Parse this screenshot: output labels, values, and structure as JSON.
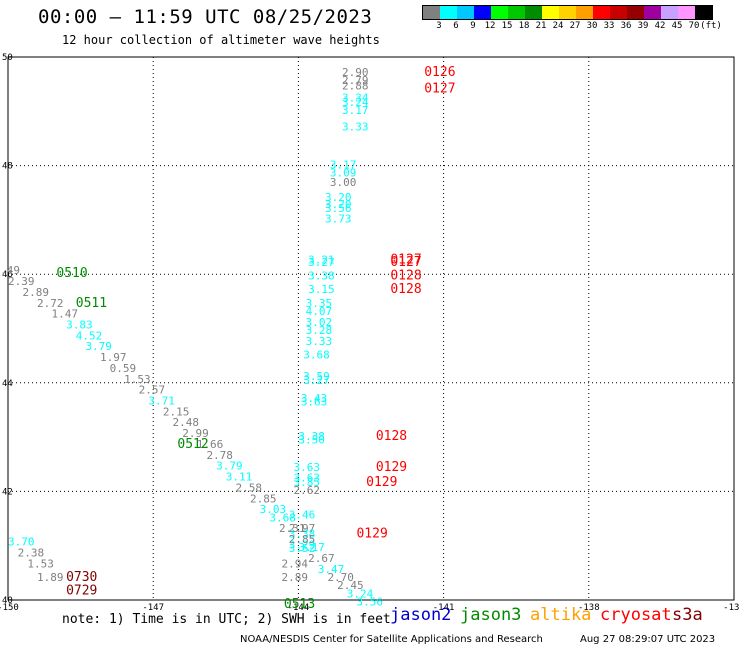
{
  "header": {
    "title": "00:00 — 11:59 UTC 08/25/2023",
    "subtitle": "12 hour collection of altimeter wave heights"
  },
  "color_scale": {
    "labels": [
      "3",
      "6",
      "9",
      "12",
      "15",
      "18",
      "21",
      "24",
      "27",
      "30",
      "33",
      "36",
      "39",
      "42",
      "45",
      "70",
      "(ft)"
    ],
    "colors": [
      "#808080",
      "#00ffff",
      "#00c8ff",
      "#0000ff",
      "#00ff00",
      "#00c800",
      "#008c00",
      "#ffff00",
      "#ffd200",
      "#ffa000",
      "#ff0000",
      "#c80000",
      "#960000",
      "#a000a0",
      "#c8a0ff",
      "#ff96ff",
      "#000000"
    ]
  },
  "note": "note: 1) Time is in UTC; 2) SWH is in feet",
  "satellites": [
    {
      "name": "jason2",
      "color": "#0000cc"
    },
    {
      "name": "jason3",
      "color": "#008c00"
    },
    {
      "name": "altika",
      "color": "#ffa000"
    },
    {
      "name": "cryosat",
      "color": "#ff0000"
    },
    {
      "name": "s3a",
      "color": "#800000"
    }
  ],
  "footer": {
    "left": "NOAA/NESDIS Center for Satellite Applications and Research",
    "right": "Aug 27 08:29:07 UTC 2023"
  },
  "chart_data": {
    "type": "scatter",
    "x_ticks": [
      "-150",
      "-147",
      "-144",
      "-141",
      "-138",
      "-135"
    ],
    "y_ticks": [
      "40",
      "42",
      "44",
      "46",
      "48",
      "50"
    ],
    "xlim": [
      -150,
      -135
    ],
    "ylim": [
      40,
      50
    ],
    "grid": true,
    "points": [
      {
        "lon": -143.1,
        "lat": 49.65,
        "label": "2.90",
        "color": "#808080"
      },
      {
        "lon": -143.1,
        "lat": 49.5,
        "label": "2.79",
        "color": "#808080"
      },
      {
        "lon": -143.1,
        "lat": 49.4,
        "label": "2.88",
        "color": "#808080"
      },
      {
        "lon": -143.1,
        "lat": 49.18,
        "label": "3.34",
        "color": "#00ffff"
      },
      {
        "lon": -143.1,
        "lat": 49.1,
        "label": "3.24",
        "color": "#00ffff"
      },
      {
        "lon": -143.1,
        "lat": 48.95,
        "label": "3.17",
        "color": "#00ffff"
      },
      {
        "lon": -143.1,
        "lat": 48.65,
        "label": "3.33",
        "color": "#00ffff"
      },
      {
        "lon": -143.35,
        "lat": 47.95,
        "label": "3.17",
        "color": "#00ffff"
      },
      {
        "lon": -143.35,
        "lat": 47.8,
        "label": "3.09",
        "color": "#00ffff"
      },
      {
        "lon": -143.35,
        "lat": 47.62,
        "label": "3.00",
        "color": "#808080"
      },
      {
        "lon": -143.45,
        "lat": 47.35,
        "label": "3.20",
        "color": "#00ffff"
      },
      {
        "lon": -143.45,
        "lat": 47.22,
        "label": "3.20",
        "color": "#00ffff"
      },
      {
        "lon": -143.45,
        "lat": 47.15,
        "label": "3.56",
        "color": "#00ffff"
      },
      {
        "lon": -143.45,
        "lat": 46.95,
        "label": "3.73",
        "color": "#00ffff"
      },
      {
        "lon": -143.8,
        "lat": 46.2,
        "label": "3.21",
        "color": "#00ffff"
      },
      {
        "lon": -143.8,
        "lat": 46.15,
        "label": "3.27",
        "color": "#00ffff"
      },
      {
        "lon": -143.8,
        "lat": 45.9,
        "label": "3.38",
        "color": "#00ffff"
      },
      {
        "lon": -143.8,
        "lat": 45.65,
        "label": "3.15",
        "color": "#00ffff"
      },
      {
        "lon": -143.85,
        "lat": 45.4,
        "label": "3.35",
        "color": "#00ffff"
      },
      {
        "lon": -143.85,
        "lat": 45.25,
        "label": "4.07",
        "color": "#00ffff"
      },
      {
        "lon": -143.85,
        "lat": 45.05,
        "label": "3.02",
        "color": "#00ffff"
      },
      {
        "lon": -143.85,
        "lat": 44.9,
        "label": "3.28",
        "color": "#00ffff"
      },
      {
        "lon": -143.85,
        "lat": 44.7,
        "label": "3.33",
        "color": "#00ffff"
      },
      {
        "lon": -143.9,
        "lat": 44.45,
        "label": "3.68",
        "color": "#00ffff"
      },
      {
        "lon": -143.9,
        "lat": 44.05,
        "label": "3.59",
        "color": "#00ffff"
      },
      {
        "lon": -143.9,
        "lat": 43.98,
        "label": "3.27",
        "color": "#00ffff"
      },
      {
        "lon": -143.95,
        "lat": 43.65,
        "label": "3.43",
        "color": "#00ffff"
      },
      {
        "lon": -143.95,
        "lat": 43.58,
        "label": "3.63",
        "color": "#00ffff"
      },
      {
        "lon": -144.0,
        "lat": 42.95,
        "label": "3.38",
        "color": "#00ffff"
      },
      {
        "lon": -144.0,
        "lat": 42.88,
        "label": "3.50",
        "color": "#00ffff"
      },
      {
        "lon": -144.1,
        "lat": 42.38,
        "label": "3.63",
        "color": "#00ffff"
      },
      {
        "lon": -144.1,
        "lat": 42.18,
        "label": "3.63",
        "color": "#00ffff"
      },
      {
        "lon": -144.1,
        "lat": 42.1,
        "label": "3.85",
        "color": "#00ffff"
      },
      {
        "lon": -144.1,
        "lat": 41.95,
        "label": "2.62",
        "color": "#808080"
      },
      {
        "lon": -144.2,
        "lat": 41.5,
        "label": "3.46",
        "color": "#00ffff"
      },
      {
        "lon": -144.2,
        "lat": 41.25,
        "label": "2.97",
        "color": "#808080"
      },
      {
        "lon": -144.2,
        "lat": 41.15,
        "label": "3.38",
        "color": "#00ffff"
      },
      {
        "lon": -144.2,
        "lat": 40.95,
        "label": "3.29",
        "color": "#00ffff"
      },
      {
        "lon": -144.2,
        "lat": 40.88,
        "label": "3.52",
        "color": "#00ffff"
      },
      {
        "lon": -144.35,
        "lat": 40.6,
        "label": "2.94",
        "color": "#808080"
      },
      {
        "lon": -144.35,
        "lat": 40.35,
        "label": "2.89",
        "color": "#808080"
      },
      {
        "lon": -150.3,
        "lat": 46.0,
        "label": "2.49",
        "color": "#808080"
      },
      {
        "lon": -150.0,
        "lat": 45.8,
        "label": "2.39",
        "color": "#808080"
      },
      {
        "lon": -149.7,
        "lat": 45.6,
        "label": "2.89",
        "color": "#808080"
      },
      {
        "lon": -149.4,
        "lat": 45.4,
        "label": "2.72",
        "color": "#808080"
      },
      {
        "lon": -149.1,
        "lat": 45.2,
        "label": "1.47",
        "color": "#808080"
      },
      {
        "lon": -148.8,
        "lat": 45.0,
        "label": "3.83",
        "color": "#00ffff"
      },
      {
        "lon": -148.6,
        "lat": 44.8,
        "label": "4.52",
        "color": "#00ffff"
      },
      {
        "lon": -148.4,
        "lat": 44.6,
        "label": "3.79",
        "color": "#00ffff"
      },
      {
        "lon": -148.1,
        "lat": 44.4,
        "label": "1.97",
        "color": "#808080"
      },
      {
        "lon": -147.9,
        "lat": 44.2,
        "label": "0.59",
        "color": "#808080"
      },
      {
        "lon": -147.6,
        "lat": 44.0,
        "label": "1.53",
        "color": "#808080"
      },
      {
        "lon": -147.3,
        "lat": 43.8,
        "label": "2.57",
        "color": "#808080"
      },
      {
        "lon": -147.1,
        "lat": 43.6,
        "label": "3.71",
        "color": "#00ffff"
      },
      {
        "lon": -146.8,
        "lat": 43.4,
        "label": "2.15",
        "color": "#808080"
      },
      {
        "lon": -146.6,
        "lat": 43.2,
        "label": "2.48",
        "color": "#808080"
      },
      {
        "lon": -146.4,
        "lat": 43.0,
        "label": "2.99",
        "color": "#808080"
      },
      {
        "lon": -146.1,
        "lat": 42.8,
        "label": "1.66",
        "color": "#808080"
      },
      {
        "lon": -145.9,
        "lat": 42.6,
        "label": "2.78",
        "color": "#808080"
      },
      {
        "lon": -145.7,
        "lat": 42.4,
        "label": "3.79",
        "color": "#00ffff"
      },
      {
        "lon": -145.5,
        "lat": 42.2,
        "label": "3.11",
        "color": "#00ffff"
      },
      {
        "lon": -145.3,
        "lat": 42.0,
        "label": "2.58",
        "color": "#808080"
      },
      {
        "lon": -145.0,
        "lat": 41.8,
        "label": "2.85",
        "color": "#808080"
      },
      {
        "lon": -144.8,
        "lat": 41.6,
        "label": "3.03",
        "color": "#00ffff"
      },
      {
        "lon": -144.6,
        "lat": 41.45,
        "label": "3.68",
        "color": "#00ffff"
      },
      {
        "lon": -144.4,
        "lat": 41.25,
        "label": "2.31",
        "color": "#808080"
      },
      {
        "lon": -144.2,
        "lat": 41.05,
        "label": "2.85",
        "color": "#808080"
      },
      {
        "lon": -144.0,
        "lat": 40.9,
        "label": "3.17",
        "color": "#00ffff"
      },
      {
        "lon": -143.8,
        "lat": 40.7,
        "label": "2.67",
        "color": "#808080"
      },
      {
        "lon": -143.6,
        "lat": 40.5,
        "label": "3.47",
        "color": "#00ffff"
      },
      {
        "lon": -143.4,
        "lat": 40.35,
        "label": "2.70",
        "color": "#808080"
      },
      {
        "lon": -143.2,
        "lat": 40.2,
        "label": "2.45",
        "color": "#808080"
      },
      {
        "lon": -143.0,
        "lat": 40.05,
        "label": "3.24",
        "color": "#00ffff"
      },
      {
        "lon": -142.8,
        "lat": 39.9,
        "label": "3.56",
        "color": "#00ffff"
      },
      {
        "lon": -150.0,
        "lat": 41.0,
        "label": "3.70",
        "color": "#00ffff"
      },
      {
        "lon": -149.8,
        "lat": 40.8,
        "label": "2.38",
        "color": "#808080"
      },
      {
        "lon": -149.6,
        "lat": 40.6,
        "label": "1.53",
        "color": "#808080"
      },
      {
        "lon": -149.4,
        "lat": 40.35,
        "label": "1.89",
        "color": "#808080"
      }
    ],
    "times": [
      {
        "lon": -141.4,
        "lat": 49.65,
        "label": "0126",
        "color": "#ff0000"
      },
      {
        "lon": -141.4,
        "lat": 49.35,
        "label": "0127",
        "color": "#ff0000"
      },
      {
        "lon": -142.1,
        "lat": 46.2,
        "label": "0127",
        "color": "#ff0000"
      },
      {
        "lon": -142.1,
        "lat": 46.15,
        "label": "0127",
        "color": "#ff0000"
      },
      {
        "lon": -142.1,
        "lat": 45.9,
        "label": "0128",
        "color": "#ff0000"
      },
      {
        "lon": -142.1,
        "lat": 45.65,
        "label": "0128",
        "color": "#ff0000"
      },
      {
        "lon": -142.4,
        "lat": 42.95,
        "label": "0128",
        "color": "#ff0000"
      },
      {
        "lon": -142.4,
        "lat": 42.38,
        "label": "0129",
        "color": "#ff0000"
      },
      {
        "lon": -142.6,
        "lat": 42.1,
        "label": "0129",
        "color": "#ff0000"
      },
      {
        "lon": -142.8,
        "lat": 41.15,
        "label": "0129",
        "color": "#ff0000"
      },
      {
        "lon": -149.0,
        "lat": 45.95,
        "label": "0510",
        "color": "#008c00"
      },
      {
        "lon": -148.6,
        "lat": 45.4,
        "label": "0511",
        "color": "#008c00"
      },
      {
        "lon": -146.5,
        "lat": 42.8,
        "label": "0512",
        "color": "#008c00"
      },
      {
        "lon": -144.3,
        "lat": 39.85,
        "label": "0513",
        "color": "#008c00"
      },
      {
        "lon": -148.8,
        "lat": 40.35,
        "label": "0730",
        "color": "#800000"
      },
      {
        "lon": -148.8,
        "lat": 40.1,
        "label": "0729",
        "color": "#800000"
      }
    ]
  }
}
